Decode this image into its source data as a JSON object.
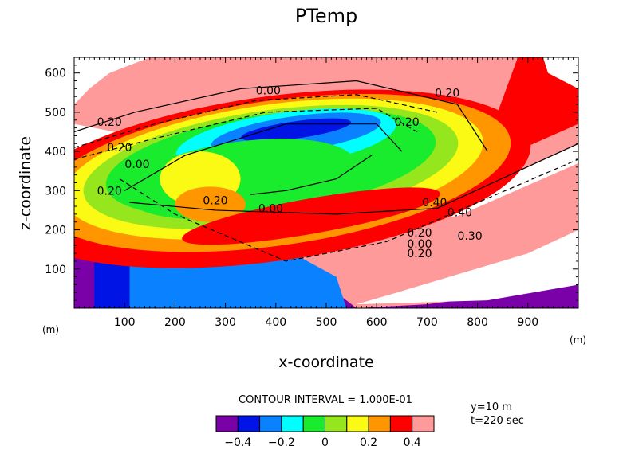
{
  "chart_data": {
    "type": "contour",
    "title": "PTemp",
    "xlabel": "x-coordinate",
    "ylabel": "z-coordinate",
    "x_unit": "(m)",
    "y_unit": "(m)",
    "xlim": [
      0,
      1000
    ],
    "ylim": [
      0,
      640
    ],
    "x_ticks": [
      100,
      200,
      300,
      400,
      500,
      600,
      700,
      800,
      900
    ],
    "y_ticks": [
      100,
      200,
      300,
      400,
      500,
      600
    ],
    "contour_interval_text": "CONTOUR INTERVAL = 1.000E-01",
    "levels": [
      -0.4,
      -0.3,
      -0.2,
      -0.1,
      0.0,
      0.1,
      0.2,
      0.3,
      0.4
    ],
    "colorbar_colors": [
      "#7a00a8",
      "#0014e6",
      "#0a82ff",
      "#00ffff",
      "#19eb2d",
      "#96e61e",
      "#fafa14",
      "#ff9600",
      "#ff0000",
      "#ff9a9a"
    ],
    "colorbar_labels": [
      "−0.4",
      "−0.2",
      "0",
      "0.2",
      "0.4"
    ],
    "contour_labels": [
      {
        "text": "0.00",
        "x": 385,
        "z": 556
      },
      {
        "text": "0.20",
        "x": 740,
        "z": 550
      },
      {
        "text": "0.20",
        "x": 70,
        "z": 475
      },
      {
        "text": "0.20",
        "x": 90,
        "z": 410
      },
      {
        "text": "0.20",
        "x": 660,
        "z": 475
      },
      {
        "text": "0.00",
        "x": 125,
        "z": 368
      },
      {
        "text": "0.20",
        "x": 70,
        "z": 300
      },
      {
        "text": "0.20",
        "x": 280,
        "z": 275
      },
      {
        "text": "0.00",
        "x": 390,
        "z": 255
      },
      {
        "text": "0.40",
        "x": 715,
        "z": 270
      },
      {
        "text": "0.40",
        "x": 765,
        "z": 245
      },
      {
        "text": "0.20",
        "x": 685,
        "z": 193
      },
      {
        "text": "0.00",
        "x": 685,
        "z": 165
      },
      {
        "text": "0.20",
        "x": 685,
        "z": 140
      },
      {
        "text": "0.30",
        "x": 785,
        "z": 185
      }
    ]
  },
  "annotations": {
    "y_slice": "y=10 m",
    "time": "t=220 sec"
  }
}
